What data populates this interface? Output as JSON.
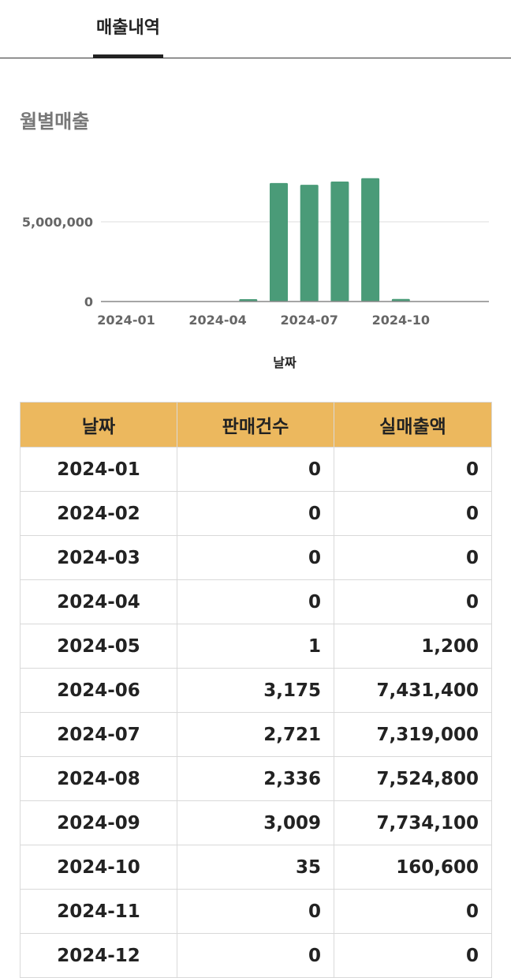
{
  "tabs": [
    {
      "label": "매출내역",
      "active": true
    }
  ],
  "section_title": "월별매출",
  "chart_data": {
    "type": "bar",
    "title": "",
    "xlabel": "날짜",
    "ylabel": "",
    "categories": [
      "2024-01",
      "2024-02",
      "2024-03",
      "2024-04",
      "2024-05",
      "2024-06",
      "2024-07",
      "2024-08",
      "2024-09",
      "2024-10",
      "2024-11",
      "2024-12"
    ],
    "values": [
      0,
      0,
      0,
      0,
      1200,
      7431400,
      7319000,
      7524800,
      7734100,
      160600,
      0,
      0
    ],
    "x_tick_labels": [
      "2024-01",
      "2024-04",
      "2024-07",
      "2024-10"
    ],
    "y_tick_values": [
      0,
      5000000
    ],
    "y_tick_labels": [
      "0",
      "5,000,000"
    ],
    "ylim": [
      0,
      10000000
    ],
    "bar_color": "#4a9b78",
    "grid": true
  },
  "table": {
    "headers": [
      "날짜",
      "판매건수",
      "실매출액"
    ],
    "rows": [
      [
        "2024-01",
        "0",
        "0"
      ],
      [
        "2024-02",
        "0",
        "0"
      ],
      [
        "2024-03",
        "0",
        "0"
      ],
      [
        "2024-04",
        "0",
        "0"
      ],
      [
        "2024-05",
        "1",
        "1,200"
      ],
      [
        "2024-06",
        "3,175",
        "7,431,400"
      ],
      [
        "2024-07",
        "2,721",
        "7,319,000"
      ],
      [
        "2024-08",
        "2,336",
        "7,524,800"
      ],
      [
        "2024-09",
        "3,009",
        "7,734,100"
      ],
      [
        "2024-10",
        "35",
        "160,600"
      ],
      [
        "2024-11",
        "0",
        "0"
      ],
      [
        "2024-12",
        "0",
        "0"
      ]
    ]
  },
  "colors": {
    "header_bg": "#ecb85e",
    "bar": "#4a9b78"
  }
}
